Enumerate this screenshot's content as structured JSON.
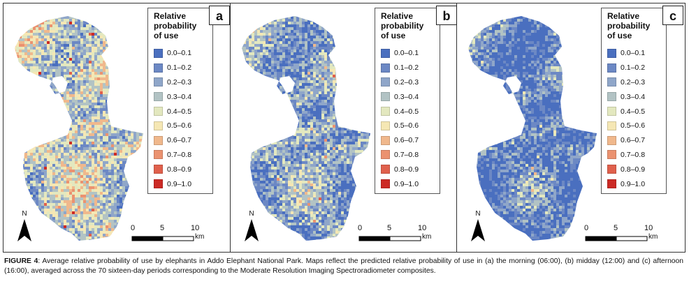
{
  "panels": [
    {
      "letter": "a",
      "bias": 0.15
    },
    {
      "letter": "b",
      "bias": 0.0
    },
    {
      "letter": "c",
      "bias": -0.12
    }
  ],
  "legend": {
    "title_lines": [
      "Relative",
      "probability",
      "of use"
    ],
    "classes": [
      {
        "label": "0.0–0.1",
        "color": "#4a6fbf"
      },
      {
        "label": "0.1–0.2",
        "color": "#6c88c4"
      },
      {
        "label": "0.2–0.3",
        "color": "#8fa6c9"
      },
      {
        "label": "0.3–0.4",
        "color": "#b2c3c4"
      },
      {
        "label": "0.4–0.5",
        "color": "#e3e8bf"
      },
      {
        "label": "0.5–0.6",
        "color": "#f5e7b4"
      },
      {
        "label": "0.6–0.7",
        "color": "#f0b88c"
      },
      {
        "label": "0.7–0.8",
        "color": "#eb9270"
      },
      {
        "label": "0.8–0.9",
        "color": "#e0604c"
      },
      {
        "label": "0.9–1.0",
        "color": "#cc2a25"
      }
    ]
  },
  "north_label": "N",
  "scalebar": {
    "ticks": [
      "0",
      "5",
      "10"
    ],
    "unit": "km"
  },
  "caption": {
    "label": "FIGURE 4",
    "text": ": Average relative probability of use by elephants in Addo Elephant National Park. Maps reflect the predicted relative probability of use in (a) the morning (06:00), (b) midday (12:00) and (c) afternoon (16:00), averaged across the 70 sixteen-day periods corresponding to the Moderate Resolution Imaging Spectroradiometer composites."
  }
}
